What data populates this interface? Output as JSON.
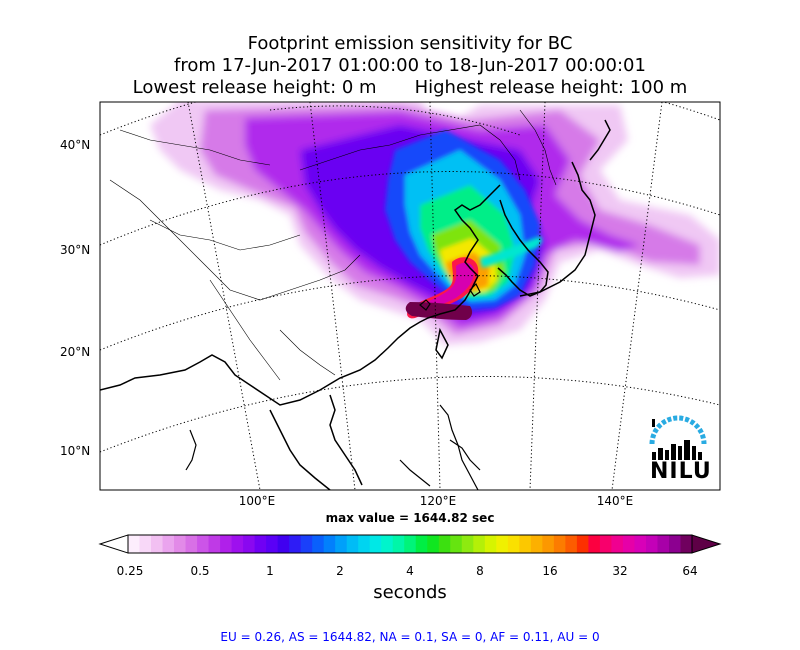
{
  "title": {
    "line1": "Footprint emission sensitivity for BC",
    "line2": "from 17-Jun-2017 01:00:00 to 18-Jun-2017 00:00:01",
    "lowest": "Lowest release height: 0 m",
    "highest": "Highest release height: 100 m"
  },
  "map": {
    "lat_labels": [
      "40°N",
      "30°N",
      "20°N",
      "10°N"
    ],
    "lon_labels": [
      "100°E",
      "120°E",
      "140°E"
    ],
    "max_value": "max value = 1644.82 sec"
  },
  "colorbar": {
    "ticks": [
      "0.25",
      "0.5",
      "1",
      "2",
      "4",
      "8",
      "16",
      "32",
      "64"
    ],
    "units": "seconds",
    "colors": [
      "#fdeefd",
      "#f8d8f8",
      "#f2c0f2",
      "#eaa4ee",
      "#e28ae8",
      "#d870e6",
      "#cc54e8",
      "#bf3ae6",
      "#b020ea",
      "#9e10ee",
      "#8a08f0",
      "#7000f4",
      "#5a00f6",
      "#4000f0",
      "#2e1cf6",
      "#1a40fa",
      "#0a60fc",
      "#0280fc",
      "#00a0fa",
      "#00bcf6",
      "#00d4f0",
      "#00e8e6",
      "#00f4cc",
      "#00f6a8",
      "#00f47a",
      "#00ee44",
      "#10e620",
      "#3ce010",
      "#66e410",
      "#8eea10",
      "#b4f008",
      "#d6f400",
      "#f0f000",
      "#fae000",
      "#fcc800",
      "#fcb000",
      "#fc9800",
      "#fc7c00",
      "#fc5c00",
      "#fc3000",
      "#fc0040",
      "#f8006c",
      "#f00090",
      "#e600a8",
      "#d800b8",
      "#c400b8",
      "#a800a8",
      "#8c0090",
      "#70005e"
    ]
  },
  "footer": "EU = 0.26,  AS = 1644.82,  NA = 0.1,  SA = 0,  AF = 0.11,  AU = 0",
  "logo": {
    "text": "NILU",
    "accent": "#29abe2"
  }
}
